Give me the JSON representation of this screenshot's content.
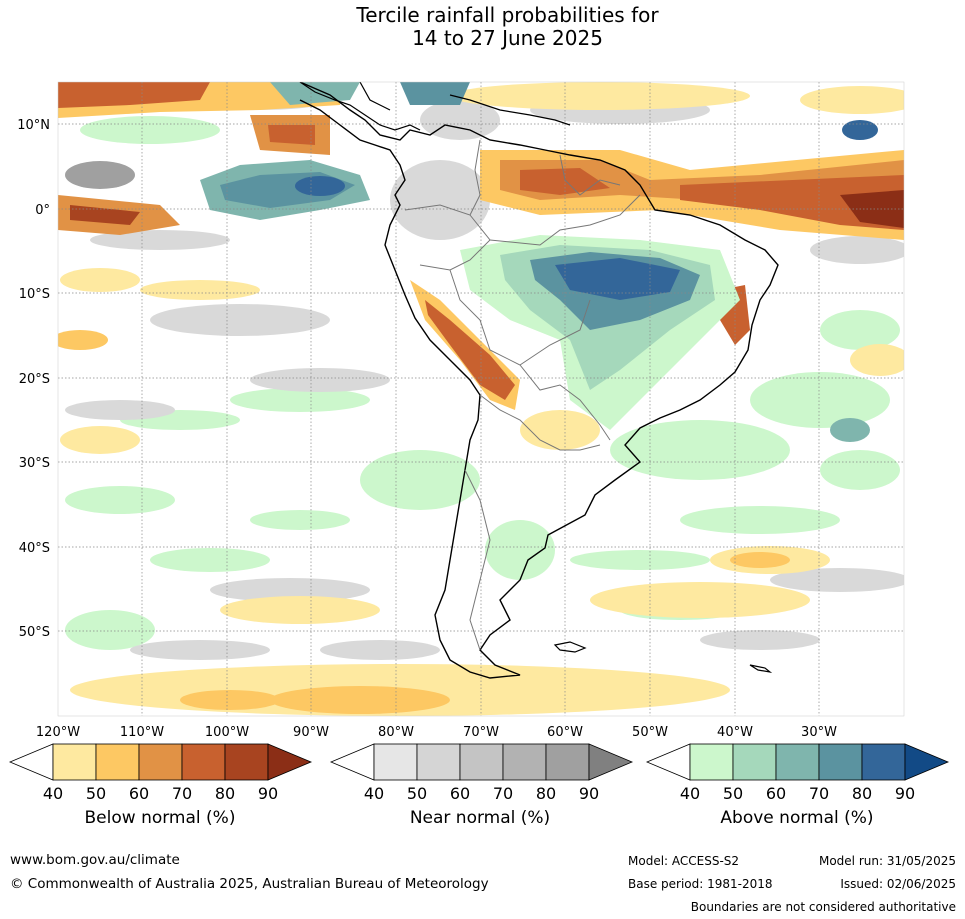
{
  "title": {
    "line1": "Tercile rainfall probabilities for",
    "line2": "14 to 27 June 2025"
  },
  "map": {
    "lat_labels": [
      "10°N",
      "0°",
      "10°S",
      "20°S",
      "30°S",
      "40°S",
      "50°S"
    ],
    "lon_labels": [
      "120°W",
      "110°W",
      "100°W",
      "90°W",
      "80°W",
      "70°W",
      "60°W",
      "50°W",
      "40°W",
      "30°W"
    ]
  },
  "colorbars": [
    {
      "label": "Below normal (%)",
      "ticks": [
        "40",
        "50",
        "60",
        "70",
        "80",
        "90"
      ],
      "colors": [
        "#ffffff",
        "#fee9a0",
        "#fdc863",
        "#e19245",
        "#c8612f",
        "#a84420",
        "#8b2e16"
      ]
    },
    {
      "label": "Near normal (%)",
      "ticks": [
        "40",
        "50",
        "60",
        "70",
        "80",
        "90"
      ],
      "colors": [
        "#ffffff",
        "#e6e6e6",
        "#d5d5d5",
        "#c4c4c4",
        "#b2b2b2",
        "#a0a0a0",
        "#808080"
      ]
    },
    {
      "label": "Above normal (%)",
      "ticks": [
        "40",
        "50",
        "60",
        "70",
        "80",
        "90"
      ],
      "colors": [
        "#ffffff",
        "#ccf7cc",
        "#a5d8bb",
        "#7fb5ad",
        "#5b93a0",
        "#336699",
        "#124a86"
      ]
    }
  ],
  "footer": {
    "website": "www.bom.gov.au/climate",
    "copyright": "© Commonwealth of Australia 2025, Australian Bureau of Meteorology",
    "model": "Model: ACCESS-S2",
    "base_period": "Base period: 1981-2018",
    "model_run": "Model run: 31/05/2025",
    "issued": "Issued: 02/06/2025",
    "boundaries": "Boundaries are not considered authoritative"
  }
}
